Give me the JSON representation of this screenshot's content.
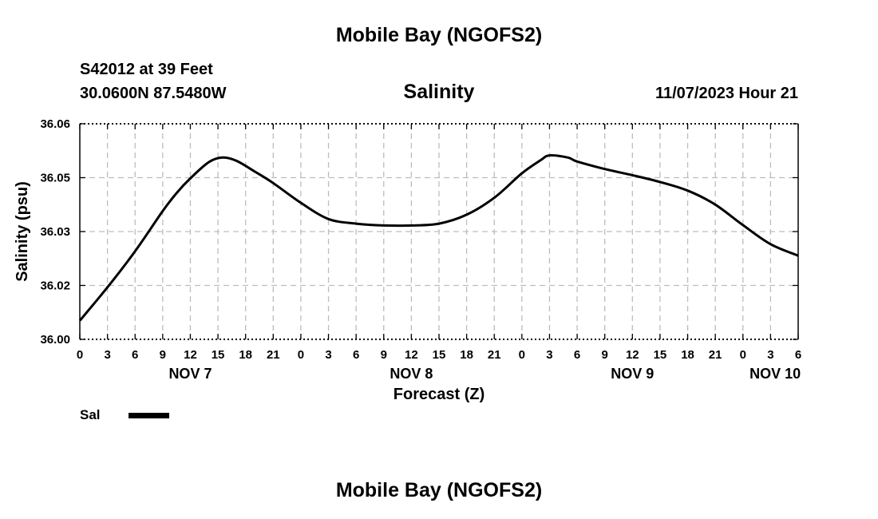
{
  "header": {
    "title": "Mobile Bay (NGOFS2)",
    "station": "S42012 at 39 Feet",
    "coordinates": "30.0600N  87.5480W",
    "chart_title": "Salinity",
    "datetime": "11/07/2023 Hour 21"
  },
  "footer": {
    "title": "Mobile Bay (NGOFS2)"
  },
  "legend": {
    "label": "Sal"
  },
  "colors": {
    "line": "#000000",
    "grid": "#bdbdbd",
    "background": "#ffffff"
  },
  "chart_data": {
    "type": "line",
    "title": "Salinity",
    "xlabel": "Forecast (Z)",
    "ylabel": "Salinity (psu)",
    "xlim": [
      0,
      78
    ],
    "ylim": [
      36.0,
      36.06
    ],
    "y_ticks": [
      {
        "value": 36.0,
        "label": "36.00"
      },
      {
        "value": 36.015,
        "label": "36.02"
      },
      {
        "value": 36.03,
        "label": "36.03"
      },
      {
        "value": 36.045,
        "label": "36.05"
      },
      {
        "value": 36.06,
        "label": "36.06"
      }
    ],
    "x_ticks": [
      {
        "value": 0,
        "label": "0"
      },
      {
        "value": 3,
        "label": "3"
      },
      {
        "value": 6,
        "label": "6"
      },
      {
        "value": 9,
        "label": "9"
      },
      {
        "value": 12,
        "label": "12"
      },
      {
        "value": 15,
        "label": "15"
      },
      {
        "value": 18,
        "label": "18"
      },
      {
        "value": 21,
        "label": "21"
      },
      {
        "value": 24,
        "label": "0"
      },
      {
        "value": 27,
        "label": "3"
      },
      {
        "value": 30,
        "label": "6"
      },
      {
        "value": 33,
        "label": "9"
      },
      {
        "value": 36,
        "label": "12"
      },
      {
        "value": 39,
        "label": "15"
      },
      {
        "value": 42,
        "label": "18"
      },
      {
        "value": 45,
        "label": "21"
      },
      {
        "value": 48,
        "label": "0"
      },
      {
        "value": 51,
        "label": "3"
      },
      {
        "value": 54,
        "label": "6"
      },
      {
        "value": 57,
        "label": "9"
      },
      {
        "value": 60,
        "label": "12"
      },
      {
        "value": 63,
        "label": "15"
      },
      {
        "value": 66,
        "label": "18"
      },
      {
        "value": 69,
        "label": "21"
      },
      {
        "value": 72,
        "label": "0"
      },
      {
        "value": 75,
        "label": "3"
      },
      {
        "value": 78,
        "label": "6"
      }
    ],
    "day_labels": [
      {
        "value": 12,
        "label": "NOV 7"
      },
      {
        "value": 36,
        "label": "NOV 8"
      },
      {
        "value": 60,
        "label": "NOV 9"
      },
      {
        "value": 75.5,
        "label": "NOV 10"
      }
    ],
    "grid": true,
    "legend_position": "bottom-left",
    "series": [
      {
        "name": "Sal",
        "x": [
          0,
          3,
          6,
          9,
          10.5,
          12,
          14,
          15.5,
          17,
          19,
          21,
          24,
          27,
          30,
          33,
          36,
          39,
          42,
          45,
          48,
          50,
          51,
          53,
          54,
          57,
          60,
          63,
          66,
          69,
          72,
          75,
          78
        ],
        "values": [
          36.0052,
          36.0145,
          36.0245,
          36.0357,
          36.0407,
          36.0448,
          36.0493,
          36.0506,
          36.0497,
          36.0467,
          36.0435,
          36.038,
          36.0335,
          36.0322,
          36.0317,
          36.0317,
          36.0322,
          36.0347,
          36.0394,
          36.0462,
          36.0498,
          36.0512,
          36.0506,
          36.0495,
          36.0474,
          36.0457,
          36.0438,
          36.0414,
          36.0375,
          36.0318,
          36.0265,
          36.0233
        ]
      }
    ]
  }
}
